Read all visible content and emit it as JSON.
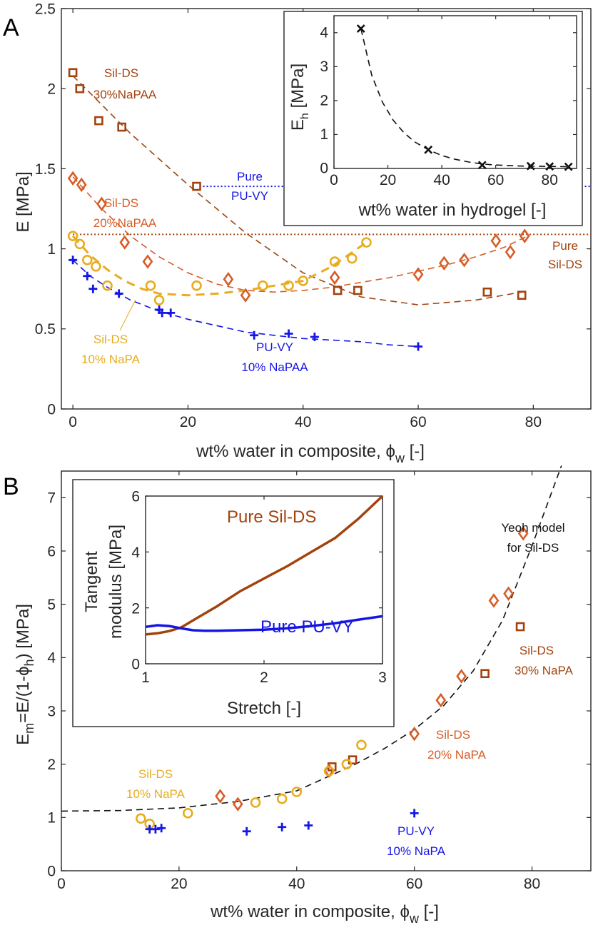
{
  "colors": {
    "blue": "#1515e6",
    "yellow": "#e8ac1e",
    "orange": "#d65d27",
    "brown": "#a2430e",
    "black": "#111111"
  },
  "panel_a_label": "A",
  "panel_b_label": "B",
  "chart_data": [
    {
      "id": "A_main",
      "type": "scatter",
      "xlabel": "wt% water in composite,  ϕ",
      "xlabel_sub": "w",
      "xlabel_unit": " [-]",
      "ylabel": "E [MPa]",
      "xlim": [
        -2,
        90
      ],
      "ylim": [
        0,
        2.5
      ],
      "xticks": [
        0,
        20,
        40,
        60,
        80
      ],
      "yticks": [
        0,
        0.5,
        1,
        1.5,
        2,
        2.5
      ],
      "ytick_labels": [
        "0",
        "0.5",
        "1",
        "1.5",
        "2",
        "2.5"
      ],
      "series": [
        {
          "name": "Sil-DS 30%NaPAA",
          "color": "brown",
          "marker": "square",
          "x": [
            0,
            1.2,
            4.5,
            8.5,
            21.5,
            46,
            49.5,
            72,
            78
          ],
          "y": [
            2.1,
            2.0,
            1.8,
            1.76,
            1.39,
            0.74,
            0.74,
            0.73,
            0.71
          ]
        },
        {
          "name": "Sil-DS 20%NaPAA",
          "color": "orange",
          "marker": "diamond",
          "x": [
            0,
            1.5,
            5,
            9,
            13,
            27,
            30,
            45.5,
            60,
            64.5,
            68,
            73.5,
            76,
            78.5
          ],
          "y": [
            1.44,
            1.4,
            1.28,
            1.04,
            0.92,
            0.81,
            0.71,
            0.82,
            0.84,
            0.91,
            0.93,
            1.05,
            0.98,
            1.08
          ]
        },
        {
          "name": "Sil-DS 10% NaPA",
          "color": "yellow",
          "marker": "circle",
          "x": [
            0,
            1.2,
            2.5,
            4,
            6,
            13.5,
            15,
            21.5,
            33,
            37.5,
            40,
            45.5,
            48.5,
            51
          ],
          "y": [
            1.08,
            1.03,
            0.93,
            0.89,
            0.77,
            0.77,
            0.68,
            0.77,
            0.77,
            0.77,
            0.8,
            0.92,
            0.94,
            1.04
          ]
        },
        {
          "name": "PU-VY 10% NaPAA",
          "color": "blue",
          "marker": "plus",
          "x": [
            0,
            2.5,
            3.5,
            8,
            15,
            15.5,
            17,
            31.5,
            37.5,
            42,
            60
          ],
          "y": [
            0.93,
            0.83,
            0.75,
            0.72,
            0.62,
            0.6,
            0.6,
            0.46,
            0.47,
            0.45,
            0.39
          ]
        }
      ],
      "fits": [
        {
          "color": "brown",
          "width": 1.6,
          "x": [
            0,
            10,
            20,
            30,
            40,
            50,
            60,
            70,
            78
          ],
          "y": [
            2.08,
            1.72,
            1.4,
            1.1,
            0.85,
            0.7,
            0.65,
            0.68,
            0.73
          ]
        },
        {
          "color": "orange",
          "width": 1.6,
          "x": [
            0,
            5,
            10,
            15,
            20,
            25,
            30,
            35,
            40,
            45,
            50,
            55,
            60,
            65,
            70,
            75,
            79
          ],
          "y": [
            1.45,
            1.25,
            1.08,
            0.95,
            0.85,
            0.78,
            0.74,
            0.73,
            0.74,
            0.76,
            0.79,
            0.82,
            0.86,
            0.9,
            0.95,
            1.01,
            1.08
          ]
        },
        {
          "color": "yellow",
          "width": 3,
          "x": [
            0,
            3,
            6,
            9,
            12,
            15,
            20,
            25,
            30,
            35,
            40,
            45,
            51
          ],
          "y": [
            1.08,
            0.96,
            0.87,
            0.8,
            0.75,
            0.72,
            0.71,
            0.72,
            0.74,
            0.77,
            0.8,
            0.89,
            1.04
          ]
        },
        {
          "color": "blue",
          "width": 1.6,
          "x": [
            0,
            3,
            6,
            10,
            15,
            20,
            25,
            30,
            35,
            40,
            45,
            50,
            55,
            60
          ],
          "y": [
            0.93,
            0.83,
            0.76,
            0.68,
            0.61,
            0.56,
            0.52,
            0.48,
            0.46,
            0.44,
            0.43,
            0.42,
            0.4,
            0.39
          ]
        }
      ],
      "hlines": [
        {
          "y": 1.39,
          "color": "blue",
          "style": "dotted",
          "x_start": 22
        },
        {
          "y": 1.09,
          "color": "brown",
          "style": "dotted",
          "x_start": 0
        }
      ],
      "annotations": [
        {
          "color": "brown",
          "lines": [
            "Sil-DS",
            "30%NaPAA"
          ]
        },
        {
          "color": "orange",
          "lines": [
            "Sil-DS",
            "20%NaPAA"
          ]
        },
        {
          "color": "blue",
          "lines": [
            "Pure",
            "PU-VY"
          ]
        },
        {
          "color": "brown",
          "lines": [
            "Pure",
            "Sil-DS"
          ]
        },
        {
          "color": "yellow",
          "lines": [
            "Sil-DS",
            "10% NaPA"
          ]
        },
        {
          "color": "blue",
          "lines": [
            "PU-VY",
            "10% NaPAA"
          ]
        }
      ]
    },
    {
      "id": "A_inset",
      "type": "scatter",
      "xlabel": "wt% water in hydrogel [-]",
      "ylabel": "E",
      "ylabel_sub": "h",
      "ylabel_unit": " [MPa]",
      "xlim": [
        0,
        90
      ],
      "ylim": [
        0,
        4.5
      ],
      "xticks": [
        0,
        20,
        40,
        60,
        80
      ],
      "yticks": [
        0,
        1,
        2,
        3,
        4
      ],
      "series": [
        {
          "name": "E_h",
          "color": "black",
          "marker": "x",
          "x": [
            10,
            35,
            55,
            73,
            80,
            87
          ],
          "y": [
            4.12,
            0.55,
            0.1,
            0.07,
            0.06,
            0.05
          ]
        }
      ],
      "fits": [
        {
          "color": "black",
          "width": 1.6,
          "x": [
            10,
            14,
            18,
            22,
            26,
            30,
            35,
            40,
            45,
            50,
            55,
            60,
            70,
            80,
            87
          ],
          "y": [
            4.12,
            2.75,
            1.95,
            1.42,
            1.05,
            0.78,
            0.55,
            0.38,
            0.27,
            0.19,
            0.13,
            0.1,
            0.07,
            0.06,
            0.05
          ]
        }
      ]
    },
    {
      "id": "B_main",
      "type": "scatter",
      "xlabel": "wt% water in composite, ϕ",
      "xlabel_sub": "w",
      "xlabel_unit": " [-]",
      "ylabel_parts": [
        "E",
        "m",
        "=E/(1-ϕ",
        "h",
        ") [MPa]"
      ],
      "xlim": [
        0,
        90
      ],
      "ylim": [
        0,
        7.5
      ],
      "xticks": [
        0,
        20,
        40,
        60,
        80
      ],
      "yticks": [
        0,
        1,
        2,
        3,
        4,
        5,
        6,
        7
      ],
      "series": [
        {
          "name": "Sil-DS 30% NaPA",
          "color": "brown",
          "marker": "square",
          "x": [
            46,
            49.5,
            72,
            78
          ],
          "y": [
            1.95,
            2.08,
            3.7,
            4.58
          ]
        },
        {
          "name": "Sil-DS 20% NaPA",
          "color": "orange",
          "marker": "diamond",
          "x": [
            27,
            30,
            45.5,
            60,
            64.5,
            68,
            73.5,
            76,
            78.5
          ],
          "y": [
            1.4,
            1.25,
            1.88,
            2.57,
            3.2,
            3.65,
            5.07,
            5.2,
            6.33
          ]
        },
        {
          "name": "Sil-DS 10% NaPA",
          "color": "yellow",
          "marker": "circle",
          "x": [
            13.5,
            15,
            21.5,
            33,
            37.5,
            40,
            45.5,
            48.5,
            51
          ],
          "y": [
            0.98,
            0.88,
            1.08,
            1.28,
            1.35,
            1.48,
            1.87,
            2.0,
            2.36
          ]
        },
        {
          "name": "PU-VY 10% NaPA",
          "color": "blue",
          "marker": "plus",
          "x": [
            15,
            16,
            17,
            31.5,
            37.5,
            42,
            60
          ],
          "y": [
            0.78,
            0.78,
            0.8,
            0.74,
            0.82,
            0.85,
            1.08
          ]
        }
      ],
      "fits": [
        {
          "color": "black",
          "width": 1.6,
          "x": [
            0,
            10,
            20,
            30,
            40,
            50,
            55,
            60,
            65,
            70,
            75,
            80,
            83,
            85
          ],
          "y": [
            1.12,
            1.13,
            1.18,
            1.3,
            1.5,
            2.0,
            2.3,
            2.65,
            3.1,
            3.75,
            4.7,
            6.1,
            7.0,
            7.6
          ]
        }
      ],
      "annotations": [
        {
          "color": "black",
          "lines": [
            "Yeoh model",
            "for Sil-DS"
          ]
        },
        {
          "color": "brown",
          "lines": [
            "Sil-DS",
            "30% NaPA"
          ]
        },
        {
          "color": "orange",
          "lines": [
            "Sil-DS",
            "20% NaPA"
          ]
        },
        {
          "color": "yellow",
          "lines": [
            "Sil-DS",
            "10% NaPA"
          ]
        },
        {
          "color": "blue",
          "lines": [
            "PU-VY",
            "10% NaPA"
          ]
        }
      ]
    },
    {
      "id": "B_inset",
      "type": "line",
      "xlabel": "Stretch [-]",
      "ylabel_lines": [
        "Tangent",
        "modulus [MPa]"
      ],
      "xlim": [
        1,
        3
      ],
      "ylim": [
        0,
        6
      ],
      "xticks": [
        1,
        2,
        3
      ],
      "yticks": [
        0,
        2,
        4,
        6
      ],
      "series": [
        {
          "name": "Pure Sil-DS",
          "color": "brown",
          "x": [
            1,
            1.1,
            1.2,
            1.3,
            1.4,
            1.5,
            1.6,
            1.8,
            2.0,
            2.2,
            2.4,
            2.6,
            2.8,
            3.0
          ],
          "y": [
            1.05,
            1.09,
            1.17,
            1.3,
            1.55,
            1.8,
            2.05,
            2.6,
            3.05,
            3.5,
            4.0,
            4.5,
            5.2,
            6.0
          ]
        },
        {
          "name": "Pure PU-VY",
          "color": "blue",
          "x": [
            1,
            1.1,
            1.2,
            1.3,
            1.4,
            1.5,
            1.6,
            1.8,
            2.0,
            2.2,
            2.4,
            2.6,
            2.8,
            3.0
          ],
          "y": [
            1.32,
            1.38,
            1.35,
            1.27,
            1.2,
            1.18,
            1.18,
            1.2,
            1.22,
            1.27,
            1.35,
            1.45,
            1.58,
            1.7
          ]
        }
      ]
    }
  ]
}
